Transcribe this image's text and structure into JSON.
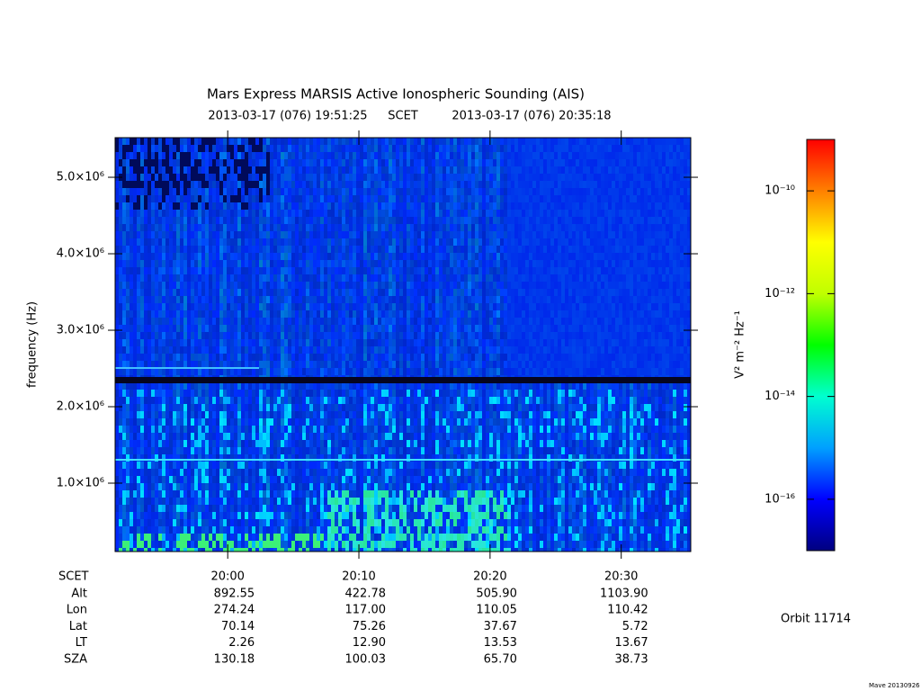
{
  "chart_data": {
    "type": "spectrogram",
    "title": "Mars Express MARSIS Active Ionospheric Sounding (AIS)",
    "start_time": "2013-03-17 (076) 19:51:25",
    "time_system": "SCET",
    "end_time": "2013-03-17 (076) 20:35:18",
    "ylabel": "frequency (Hz)",
    "xlim": [
      19.85694,
      20.58833
    ],
    "xticks": [
      {
        "value": 20.0,
        "label": "20:00"
      },
      {
        "value": 20.16667,
        "label": "20:10"
      },
      {
        "value": 20.33333,
        "label": "20:20"
      },
      {
        "value": 20.5,
        "label": "20:30"
      }
    ],
    "ylim": [
      106000,
      5518000
    ],
    "yticks": [
      {
        "value": 1000000,
        "label": "1.0×10⁶"
      },
      {
        "value": 2000000,
        "label": "2.0×10⁶"
      },
      {
        "value": 3000000,
        "label": "3.0×10⁶"
      },
      {
        "value": 4000000,
        "label": "4.0×10⁶"
      },
      {
        "value": 5000000,
        "label": "5.0×10⁶"
      }
    ],
    "colorbar": {
      "label": "V² m⁻² Hz⁻¹",
      "log": true,
      "clim": [
        1e-17,
        1e-09
      ],
      "cticks": [
        {
          "value": 1e-10,
          "label": "10⁻¹⁰"
        },
        {
          "value": 1e-12,
          "label": "10⁻¹²"
        },
        {
          "value": 1e-14,
          "label": "10⁻¹⁴"
        },
        {
          "value": 1e-16,
          "label": "10⁻¹⁶"
        }
      ],
      "colormap": [
        "#000080",
        "#0000ff",
        "#00a0ff",
        "#00ffd0",
        "#00ff00",
        "#c0ff00",
        "#ffff00",
        "#ff8000",
        "#ff0000"
      ]
    },
    "ephemeris": {
      "time_label": "SCET",
      "rows": [
        {
          "label": "Alt",
          "values": [
            "892.55",
            "422.78",
            "505.90",
            "1103.90"
          ]
        },
        {
          "label": "Lon",
          "values": [
            "274.24",
            "117.00",
            "110.05",
            "110.42"
          ]
        },
        {
          "label": "Lat",
          "values": [
            "70.14",
            "75.26",
            "37.67",
            "5.72"
          ]
        },
        {
          "label": "LT",
          "values": [
            "2.26",
            "12.90",
            "13.53",
            "13.67"
          ]
        },
        {
          "label": "SZA",
          "values": [
            "130.18",
            "100.03",
            "65.70",
            "38.73"
          ]
        }
      ]
    },
    "orbit": "Orbit 11714",
    "credit": "Mave 20130926"
  }
}
